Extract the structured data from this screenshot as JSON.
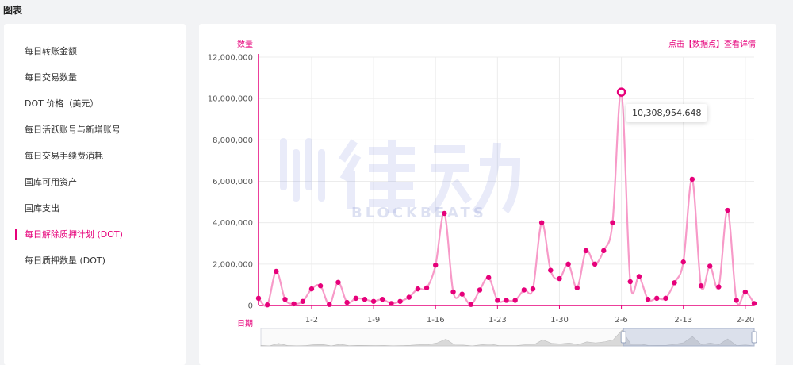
{
  "page": {
    "title": "图表"
  },
  "sidebar": {
    "items": [
      {
        "label": "每日转账金额",
        "active": false
      },
      {
        "label": "每日交易数量",
        "active": false
      },
      {
        "label": "DOT 价格（美元）",
        "active": false
      },
      {
        "label": "每日活跃账号与新增账号",
        "active": false
      },
      {
        "label": "每日交易手续费消耗",
        "active": false
      },
      {
        "label": "国库可用资产",
        "active": false
      },
      {
        "label": "国库支出",
        "active": false
      },
      {
        "label": "每日解除质押计划 (DOT)",
        "active": true
      },
      {
        "label": "每日质押数量 (DOT)",
        "active": false
      }
    ]
  },
  "chart": {
    "y_unit": "数量",
    "x_unit": "日期",
    "detail_link": "点击【数据点】查看详情",
    "tooltip": "10,308,954.648",
    "watermark": {
      "name": "律动",
      "sub": "BLOCKBEATS"
    },
    "accent": "#e6007a",
    "line_color": "#f79ac8"
  },
  "chart_data": {
    "type": "line",
    "smooth": true,
    "x": [
      "12-27",
      "12-28",
      "12-29",
      "12-30",
      "12-31",
      "1-1",
      "1-2",
      "1-3",
      "1-4",
      "1-5",
      "1-6",
      "1-7",
      "1-8",
      "1-9",
      "1-10",
      "1-11",
      "1-12",
      "1-13",
      "1-14",
      "1-15",
      "1-16",
      "1-17",
      "1-18",
      "1-19",
      "1-20",
      "1-21",
      "1-22",
      "1-23",
      "1-24",
      "1-25",
      "1-26",
      "1-27",
      "1-28",
      "1-29",
      "1-30",
      "1-31",
      "2-1",
      "2-2",
      "2-3",
      "2-4",
      "2-5",
      "2-6",
      "2-7",
      "2-8",
      "2-9",
      "2-10",
      "2-11",
      "2-12",
      "2-13",
      "2-14",
      "2-15",
      "2-16",
      "2-17",
      "2-18",
      "2-19",
      "2-20",
      "2-21"
    ],
    "series": [
      {
        "values": [
          350000,
          30000,
          1650000,
          300000,
          80000,
          200000,
          800000,
          950000,
          50000,
          1120000,
          150000,
          350000,
          300000,
          200000,
          300000,
          100000,
          200000,
          400000,
          800000,
          850000,
          1950000,
          4450000,
          650000,
          550000,
          50000,
          750000,
          1350000,
          250000,
          250000,
          250000,
          750000,
          800000,
          4000000,
          1700000,
          1300000,
          2000000,
          850000,
          2650000,
          2000000,
          2650000,
          4000000,
          10308954.648,
          1150000,
          1400000,
          300000,
          350000,
          350000,
          1100000,
          2100000,
          6100000,
          950000,
          1900000,
          900000,
          4600000,
          250000,
          650000,
          100000
        ]
      }
    ],
    "highlight_index": 41,
    "xticks": [
      "1-2",
      "1-9",
      "1-16",
      "1-23",
      "1-30",
      "2-6",
      "2-13",
      "2-20"
    ],
    "yticks": [
      "0",
      "2,000,000",
      "4,000,000",
      "6,000,000",
      "8,000,000",
      "10,000,000",
      "12,000,000"
    ],
    "ylim": [
      0,
      12000000
    ],
    "grid": true,
    "slider": {
      "start": 0.735,
      "end": 1.0
    }
  }
}
